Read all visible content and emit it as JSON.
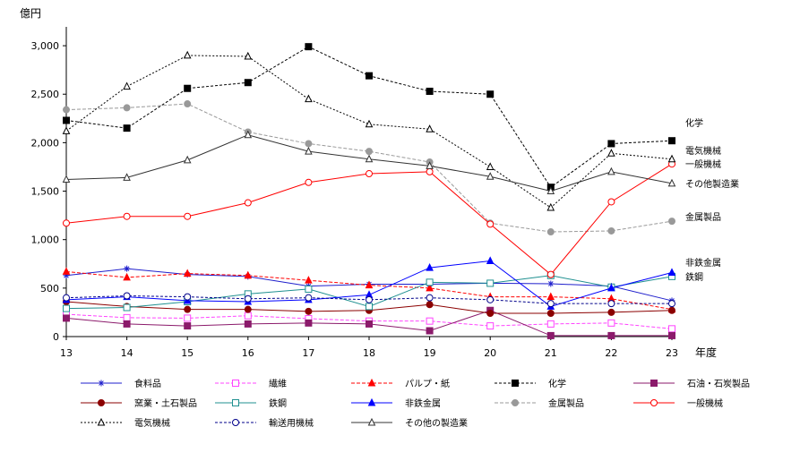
{
  "chart_data": {
    "type": "line",
    "y_unit": "億円",
    "x_unit": "年度",
    "x": [
      "13",
      "14",
      "15",
      "16",
      "17",
      "18",
      "19",
      "20",
      "21",
      "22",
      "23"
    ],
    "ylim": [
      0,
      3250
    ],
    "yticks": [
      "0",
      "500",
      "1,000",
      "1,500",
      "2,000",
      "2,500",
      "3,000"
    ],
    "ytick_values": [
      0,
      500,
      1000,
      1500,
      2000,
      2500,
      3000
    ],
    "grid": false,
    "legend_position": "bottom",
    "series": [
      {
        "name": "食料品",
        "color": "#1f1fcc",
        "dash": "",
        "marker": "asterisk",
        "values": [
          630,
          700,
          640,
          620,
          520,
          540,
          540,
          550,
          545,
          520,
          370
        ]
      },
      {
        "name": "繊維",
        "color": "#ff44ff",
        "dash": "4,2",
        "marker": "square-open",
        "values": [
          230,
          195,
          190,
          215,
          185,
          160,
          160,
          110,
          130,
          140,
          80
        ]
      },
      {
        "name": "パルプ・紙",
        "color": "#ff0000",
        "dash": "4,2",
        "marker": "triangle",
        "values": [
          670,
          610,
          650,
          630,
          580,
          530,
          500,
          410,
          410,
          390,
          280
        ]
      },
      {
        "name": "化学",
        "color": "#000000",
        "dash": "3,2",
        "marker": "square",
        "values": [
          2230,
          2150,
          2560,
          2620,
          2990,
          2690,
          2530,
          2500,
          1540,
          1990,
          2020
        ]
      },
      {
        "name": "石油・石炭製品",
        "color": "#8b1a6b",
        "dash": "",
        "marker": "square",
        "values": [
          190,
          130,
          110,
          130,
          140,
          130,
          60,
          270,
          10,
          10,
          10
        ]
      },
      {
        "name": "窯業・土石製品",
        "color": "#8b0000",
        "dash": "",
        "marker": "circle",
        "values": [
          360,
          310,
          280,
          280,
          260,
          270,
          330,
          240,
          240,
          250,
          270
        ]
      },
      {
        "name": "鉄鋼",
        "color": "#1f9090",
        "dash": "",
        "marker": "square-open",
        "values": [
          290,
          300,
          360,
          440,
          490,
          310,
          560,
          550,
          630,
          510,
          620
        ]
      },
      {
        "name": "非鉄金属",
        "color": "#0000ff",
        "dash": "",
        "marker": "triangle",
        "values": [
          380,
          410,
          370,
          360,
          380,
          430,
          710,
          780,
          310,
          500,
          660
        ]
      },
      {
        "name": "金属製品",
        "color": "#999999",
        "dash": "4,2",
        "marker": "circle",
        "values": [
          2340,
          2360,
          2400,
          2110,
          1990,
          1910,
          1800,
          1170,
          1080,
          1090,
          1190
        ]
      },
      {
        "name": "一般機械",
        "color": "#ff0000",
        "dash": "",
        "marker": "circle-open",
        "values": [
          1170,
          1240,
          1240,
          1380,
          1590,
          1680,
          1700,
          1160,
          640,
          1390,
          1780
        ]
      },
      {
        "name": "電気機械",
        "color": "#000000",
        "dash": "2,2",
        "marker": "triangle-open",
        "values": [
          2120,
          2580,
          2900,
          2890,
          2450,
          2190,
          2140,
          1750,
          1330,
          1890,
          1830
        ]
      },
      {
        "name": "輸送用機械",
        "color": "#00008b",
        "dash": "3,2",
        "marker": "circle-open",
        "values": [
          400,
          420,
          410,
          390,
          400,
          380,
          400,
          380,
          340,
          340,
          340
        ]
      },
      {
        "name": "その他の製造業",
        "color": "#333333",
        "dash": "",
        "marker": "triangle-open",
        "values": [
          1620,
          1640,
          1820,
          2080,
          1910,
          1830,
          1760,
          1650,
          1500,
          1700,
          1580
        ]
      }
    ],
    "end_labels": [
      {
        "text": "化学",
        "series": "化学"
      },
      {
        "text": "電気機械",
        "series": "電気機械"
      },
      {
        "text": "一般機械",
        "series": "一般機械"
      },
      {
        "text": "その他製造業",
        "series": "その他の製造業"
      },
      {
        "text": "金属製品",
        "series": "金属製品"
      },
      {
        "text": "非鉄金属",
        "series": "非鉄金属"
      },
      {
        "text": "鉄鋼",
        "series": "鉄鋼"
      }
    ]
  }
}
